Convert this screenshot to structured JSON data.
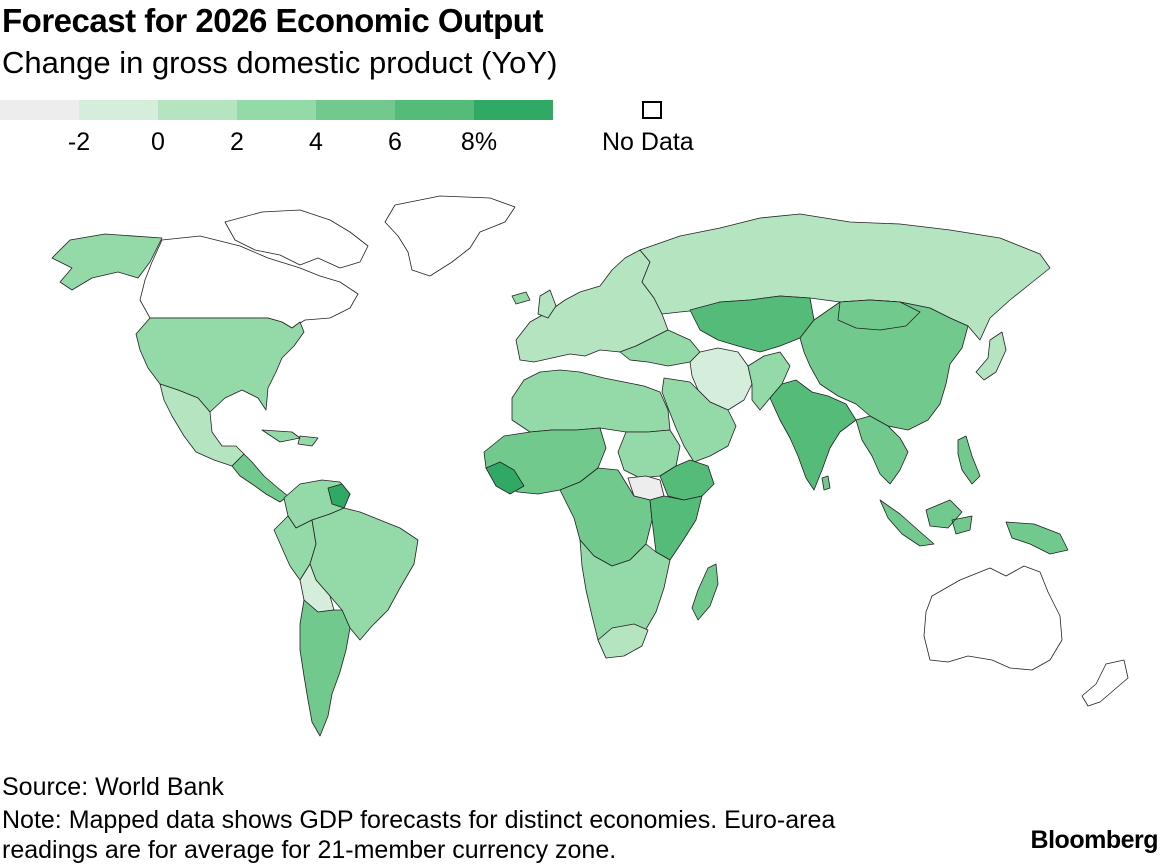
{
  "header": {
    "title": "Forecast for 2026 Economic Output",
    "subtitle": "Change in gross domestic product (YoY)"
  },
  "legend": {
    "ticks": [
      "-2",
      "0",
      "2",
      "4",
      "6",
      "8%"
    ],
    "colors": [
      "#ededed",
      "#d4eedb",
      "#b5e4c1",
      "#94d9a8",
      "#71c98d",
      "#55bb79",
      "#2fa963"
    ],
    "no_data_label": "No Data",
    "no_data_color": "#ffffff"
  },
  "map": {
    "description_regions": [
      {
        "name": "Canada",
        "value": "no data"
      },
      {
        "name": "United States",
        "value": 2
      },
      {
        "name": "Mexico",
        "value": 1
      },
      {
        "name": "Brazil",
        "value": 2
      },
      {
        "name": "Argentina",
        "value": 4
      },
      {
        "name": "Bolivia",
        "value": 0.5
      },
      {
        "name": "Guyana",
        "value": 10
      },
      {
        "name": "Russia",
        "value": 1
      },
      {
        "name": "China",
        "value": 4.5
      },
      {
        "name": "India",
        "value": 6.5
      },
      {
        "name": "Iran",
        "value": 0
      },
      {
        "name": "Ethiopia",
        "value": 7
      },
      {
        "name": "Tanzania",
        "value": 6
      },
      {
        "name": "South Africa",
        "value": 1
      },
      {
        "name": "Australia",
        "value": "no data"
      },
      {
        "name": "Greenland",
        "value": "no data"
      },
      {
        "name": "Indonesia",
        "value": 5
      }
    ]
  },
  "footer": {
    "source": "Source: World Bank",
    "note": "Note: Mapped data shows GDP forecasts for distinct economies. Euro-area readings are for average for 21-member currency zone.",
    "brand": "Bloomberg"
  }
}
